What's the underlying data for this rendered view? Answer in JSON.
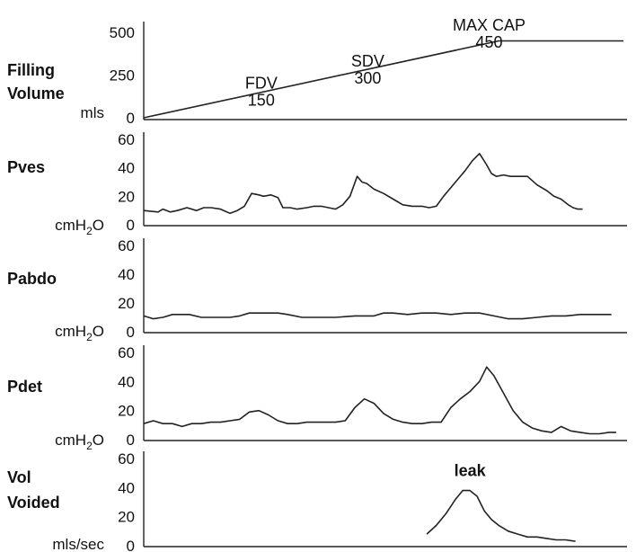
{
  "chart_data": [
    {
      "type": "line",
      "label_lines": [
        "Filling",
        "Volume"
      ],
      "unit": "mls",
      "y_ticks": [
        0,
        250,
        500
      ],
      "ylim": [
        0,
        500
      ],
      "xlim": [
        0,
        100
      ],
      "series": [
        {
          "x": [
            0,
            74,
            100
          ],
          "y": [
            0,
            450,
            450
          ]
        }
      ],
      "annotations": [
        {
          "text": "FDV",
          "x": 24.5,
          "y": 170
        },
        {
          "text": "150",
          "x": 24.5,
          "y": 70
        },
        {
          "text": "SDV",
          "x": 46.7,
          "y": 300
        },
        {
          "text": "300",
          "x": 46.7,
          "y": 200
        },
        {
          "text": "MAX CAP",
          "x": 72,
          "y": 510
        },
        {
          "text": "450",
          "x": 72,
          "y": 410
        }
      ]
    },
    {
      "type": "line",
      "label_lines": [
        "Pves"
      ],
      "unit": "cmH",
      "unit_sub": "2",
      "unit_suffix": "O",
      "y_ticks": [
        0,
        20,
        40,
        60
      ],
      "ylim": [
        0,
        60
      ],
      "xlim": [
        0,
        100
      ],
      "series": [
        {
          "x": [
            0,
            3,
            4,
            5.5,
            7,
            9,
            11,
            12.5,
            14,
            16,
            18,
            19.5,
            21,
            22.5,
            24,
            25,
            26.5,
            28,
            29,
            30.5,
            32,
            34,
            35.5,
            37,
            38.5,
            40,
            41.5,
            43,
            44.5,
            45.5,
            46.5,
            48,
            50,
            52,
            54,
            56,
            58,
            59.5,
            61,
            62.5,
            63.5,
            65,
            67,
            68.5,
            70,
            71.5,
            72.5,
            73.5,
            75,
            76.5,
            78,
            80,
            82,
            84,
            85.5,
            87,
            88.5,
            89.5,
            90.5,
            91.5
          ],
          "y": [
            10,
            9,
            11,
            9,
            10,
            12,
            10,
            12,
            12,
            11,
            8,
            10,
            13,
            22,
            21,
            20,
            21,
            19,
            12,
            12,
            11,
            12,
            13,
            13,
            12,
            11,
            14,
            20,
            34,
            30,
            29,
            25,
            22,
            18,
            14,
            13,
            13,
            12,
            13,
            20,
            24,
            30,
            38,
            45,
            50,
            42,
            36,
            34,
            35,
            34,
            34,
            34,
            28,
            24,
            20,
            18,
            14,
            12,
            11,
            11
          ]
        }
      ]
    },
    {
      "type": "line",
      "label_lines": [
        "Pabdo"
      ],
      "unit": "cmH",
      "unit_sub": "2",
      "unit_suffix": "O",
      "y_ticks": [
        0,
        20,
        40,
        60
      ],
      "ylim": [
        0,
        60
      ],
      "xlim": [
        0,
        100
      ],
      "series": [
        {
          "x": [
            0,
            2,
            4,
            6,
            8,
            9.5,
            12,
            15,
            18,
            20,
            22,
            25,
            28,
            30,
            33,
            36,
            40,
            44,
            48,
            50,
            52,
            55,
            58,
            61,
            64,
            67,
            70,
            73,
            76,
            79,
            82,
            85,
            88,
            91,
            94,
            97.5
          ],
          "y": [
            11,
            9,
            10,
            12,
            12,
            12,
            10,
            10,
            10,
            11,
            13,
            13,
            13,
            12,
            10,
            10,
            10,
            11,
            11,
            13,
            13,
            12,
            13,
            13,
            12,
            13,
            13,
            11,
            9,
            9,
            10,
            11,
            11,
            12,
            12,
            12
          ]
        }
      ]
    },
    {
      "type": "line",
      "label_lines": [
        "Pdet"
      ],
      "unit": "cmH",
      "unit_sub": "2",
      "unit_suffix": "O",
      "y_ticks": [
        0,
        20,
        40,
        60
      ],
      "ylim": [
        0,
        60
      ],
      "xlim": [
        0,
        100
      ],
      "series": [
        {
          "x": [
            0,
            2,
            4,
            6,
            8,
            10,
            12,
            14,
            16,
            18,
            20,
            22,
            24,
            26,
            28,
            30,
            32,
            34,
            36,
            38,
            40,
            42,
            44,
            46,
            48,
            50,
            52,
            54,
            56,
            58,
            60,
            62,
            64,
            66,
            68,
            70,
            71.5,
            73,
            75,
            77,
            79,
            81,
            83,
            85,
            87,
            89,
            91,
            93,
            95,
            97,
            98.5
          ],
          "y": [
            11,
            13,
            11,
            11,
            9,
            11,
            11,
            12,
            12,
            13,
            14,
            19,
            20,
            17,
            13,
            11,
            11,
            12,
            12,
            12,
            12,
            13,
            22,
            28,
            25,
            18,
            14,
            12,
            11,
            11,
            12,
            12,
            22,
            28,
            33,
            40,
            50,
            44,
            32,
            20,
            12,
            8,
            6,
            5,
            9,
            6,
            5,
            4,
            4,
            5,
            5
          ]
        }
      ]
    },
    {
      "type": "line",
      "label_lines": [
        "Vol",
        "Voided"
      ],
      "unit": "mls/sec",
      "y_ticks": [
        0,
        20,
        40,
        60
      ],
      "ylim": [
        0,
        60
      ],
      "xlim": [
        0,
        100
      ],
      "series": [
        {
          "x": [
            59,
            61,
            63,
            65,
            66.5,
            68,
            69.5,
            71,
            72.5,
            74,
            76,
            78,
            80,
            82,
            84,
            86,
            88,
            90
          ],
          "y": [
            8,
            14,
            22,
            32,
            38,
            38,
            34,
            24,
            18,
            14,
            10,
            8,
            6,
            6,
            5,
            4,
            4,
            3
          ]
        }
      ],
      "annotations": [
        {
          "text": "leak",
          "x": 68,
          "y": 48,
          "bold": true
        }
      ]
    }
  ]
}
